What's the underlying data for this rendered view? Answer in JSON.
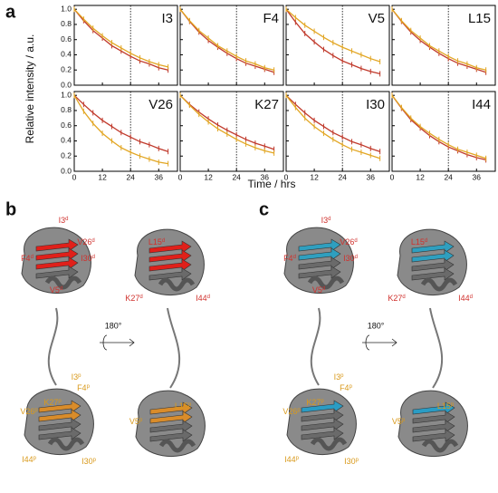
{
  "chart_data": {
    "type": "line",
    "y_label": "Relative intensity / a.u.",
    "x_label": "Time / hrs",
    "xlim": [
      0,
      44
    ],
    "xticks": [
      0,
      12,
      24,
      36
    ],
    "ylim": [
      0,
      1.05
    ],
    "yticks": [
      {
        "value": 0,
        "label": "0.0"
      },
      {
        "value": 0.2,
        "label": "0.2"
      },
      {
        "value": 0.4,
        "label": "0.4"
      },
      {
        "value": 0.6,
        "label": "0.6"
      },
      {
        "value": 0.8,
        "label": "0.8"
      },
      {
        "value": 1,
        "label": "1.0"
      }
    ],
    "vline": 24,
    "x": [
      0,
      4,
      8,
      12,
      16,
      20,
      24,
      28,
      32,
      36,
      40
    ],
    "panels": [
      {
        "title": "I3",
        "series": [
          {
            "color": "#c0392b",
            "values": [
              1,
              0.85,
              0.72,
              0.62,
              0.52,
              0.45,
              0.38,
              0.32,
              0.28,
              0.23,
              0.2
            ]
          },
          {
            "color": "#e2a623",
            "values": [
              1,
              0.87,
              0.75,
              0.65,
              0.56,
              0.49,
              0.42,
              0.36,
              0.31,
              0.27,
              0.24
            ]
          }
        ]
      },
      {
        "title": "F4",
        "series": [
          {
            "color": "#c0392b",
            "values": [
              1,
              0.84,
              0.7,
              0.59,
              0.5,
              0.42,
              0.35,
              0.29,
              0.25,
              0.21,
              0.17
            ]
          },
          {
            "color": "#e2a623",
            "values": [
              1,
              0.85,
              0.72,
              0.62,
              0.52,
              0.45,
              0.38,
              0.32,
              0.28,
              0.23,
              0.2
            ]
          }
        ]
      },
      {
        "title": "V5",
        "series": [
          {
            "color": "#c0392b",
            "values": [
              1,
              0.83,
              0.68,
              0.57,
              0.47,
              0.39,
              0.32,
              0.27,
              0.22,
              0.18,
              0.15
            ]
          },
          {
            "color": "#e2a623",
            "values": [
              1,
              0.89,
              0.79,
              0.71,
              0.63,
              0.56,
              0.5,
              0.45,
              0.4,
              0.35,
              0.31
            ]
          }
        ]
      },
      {
        "title": "L15",
        "series": [
          {
            "color": "#c0392b",
            "values": [
              1,
              0.84,
              0.7,
              0.59,
              0.5,
              0.42,
              0.35,
              0.29,
              0.25,
              0.21,
              0.17
            ]
          },
          {
            "color": "#e2a623",
            "values": [
              1,
              0.85,
              0.72,
              0.62,
              0.52,
              0.45,
              0.38,
              0.32,
              0.28,
              0.23,
              0.2
            ]
          }
        ]
      },
      {
        "title": "V26",
        "series": [
          {
            "color": "#c0392b",
            "values": [
              1,
              0.88,
              0.77,
              0.67,
              0.59,
              0.51,
              0.45,
              0.39,
              0.35,
              0.3,
              0.26
            ]
          },
          {
            "color": "#e2a623",
            "values": [
              1,
              0.79,
              0.63,
              0.5,
              0.4,
              0.31,
              0.25,
              0.2,
              0.16,
              0.12,
              0.1
            ]
          }
        ]
      },
      {
        "title": "K27",
        "series": [
          {
            "color": "#c0392b",
            "values": [
              1,
              0.88,
              0.78,
              0.69,
              0.61,
              0.54,
              0.48,
              0.42,
              0.37,
              0.33,
              0.29
            ]
          },
          {
            "color": "#e2a623",
            "values": [
              1,
              0.87,
              0.75,
              0.65,
              0.56,
              0.49,
              0.42,
              0.36,
              0.31,
              0.27,
              0.24
            ]
          }
        ]
      },
      {
        "title": "I30",
        "series": [
          {
            "color": "#c0392b",
            "values": [
              1,
              0.88,
              0.77,
              0.67,
              0.59,
              0.51,
              0.45,
              0.39,
              0.35,
              0.3,
              0.26
            ]
          },
          {
            "color": "#e2a623",
            "values": [
              1,
              0.84,
              0.7,
              0.59,
              0.5,
              0.42,
              0.35,
              0.29,
              0.25,
              0.21,
              0.17
            ]
          }
        ]
      },
      {
        "title": "I44",
        "series": [
          {
            "color": "#c0392b",
            "values": [
              1,
              0.83,
              0.68,
              0.57,
              0.47,
              0.39,
              0.32,
              0.27,
              0.22,
              0.18,
              0.15
            ]
          },
          {
            "color": "#e2a623",
            "values": [
              1,
              0.84,
              0.7,
              0.59,
              0.5,
              0.42,
              0.35,
              0.29,
              0.25,
              0.21,
              0.17
            ]
          }
        ]
      }
    ]
  },
  "figure": {
    "panel_labels": [
      "a",
      "b",
      "c"
    ],
    "rotation": "180°",
    "structures": [
      {
        "groups": [
          {
            "color": "#d0312d",
            "residues": [
              {
                "label": "I3",
                "sup": "d"
              },
              {
                "label": "V26",
                "sup": "d"
              },
              {
                "label": "F4",
                "sup": "d"
              },
              {
                "label": "I30",
                "sup": "d"
              },
              {
                "label": "V5",
                "sup": "d"
              },
              {
                "label": "L15",
                "sup": "d"
              },
              {
                "label": "K27",
                "sup": "d"
              },
              {
                "label": "I44",
                "sup": "d"
              }
            ]
          },
          {
            "color": "#d99a1c",
            "residues": [
              {
                "label": "I3",
                "sup": "p"
              },
              {
                "label": "F4",
                "sup": "p"
              },
              {
                "label": "K27",
                "sup": "p"
              },
              {
                "label": "V26",
                "sup": "p"
              },
              {
                "label": "I44",
                "sup": "p"
              },
              {
                "label": "I30",
                "sup": "p"
              },
              {
                "label": "L15",
                "sup": "p"
              },
              {
                "label": "V5",
                "sup": "p"
              }
            ]
          }
        ]
      },
      {
        "groups": [
          {
            "color": "#d0312d",
            "residues": [
              {
                "label": "I3",
                "sup": "d"
              },
              {
                "label": "V26",
                "sup": "d"
              },
              {
                "label": "F4",
                "sup": "d"
              },
              {
                "label": "I30",
                "sup": "d"
              },
              {
                "label": "V5",
                "sup": "d"
              },
              {
                "label": "L15",
                "sup": "d"
              },
              {
                "label": "K27",
                "sup": "d"
              },
              {
                "label": "I44",
                "sup": "d"
              }
            ]
          },
          {
            "color": "#d99a1c",
            "residues": [
              {
                "label": "I3",
                "sup": "p"
              },
              {
                "label": "F4",
                "sup": "p"
              },
              {
                "label": "K27",
                "sup": "p"
              },
              {
                "label": "V26",
                "sup": "p"
              },
              {
                "label": "I44",
                "sup": "p"
              },
              {
                "label": "I30",
                "sup": "p"
              },
              {
                "label": "L15",
                "sup": "p"
              },
              {
                "label": "V5",
                "sup": "p"
              }
            ]
          }
        ]
      }
    ]
  }
}
